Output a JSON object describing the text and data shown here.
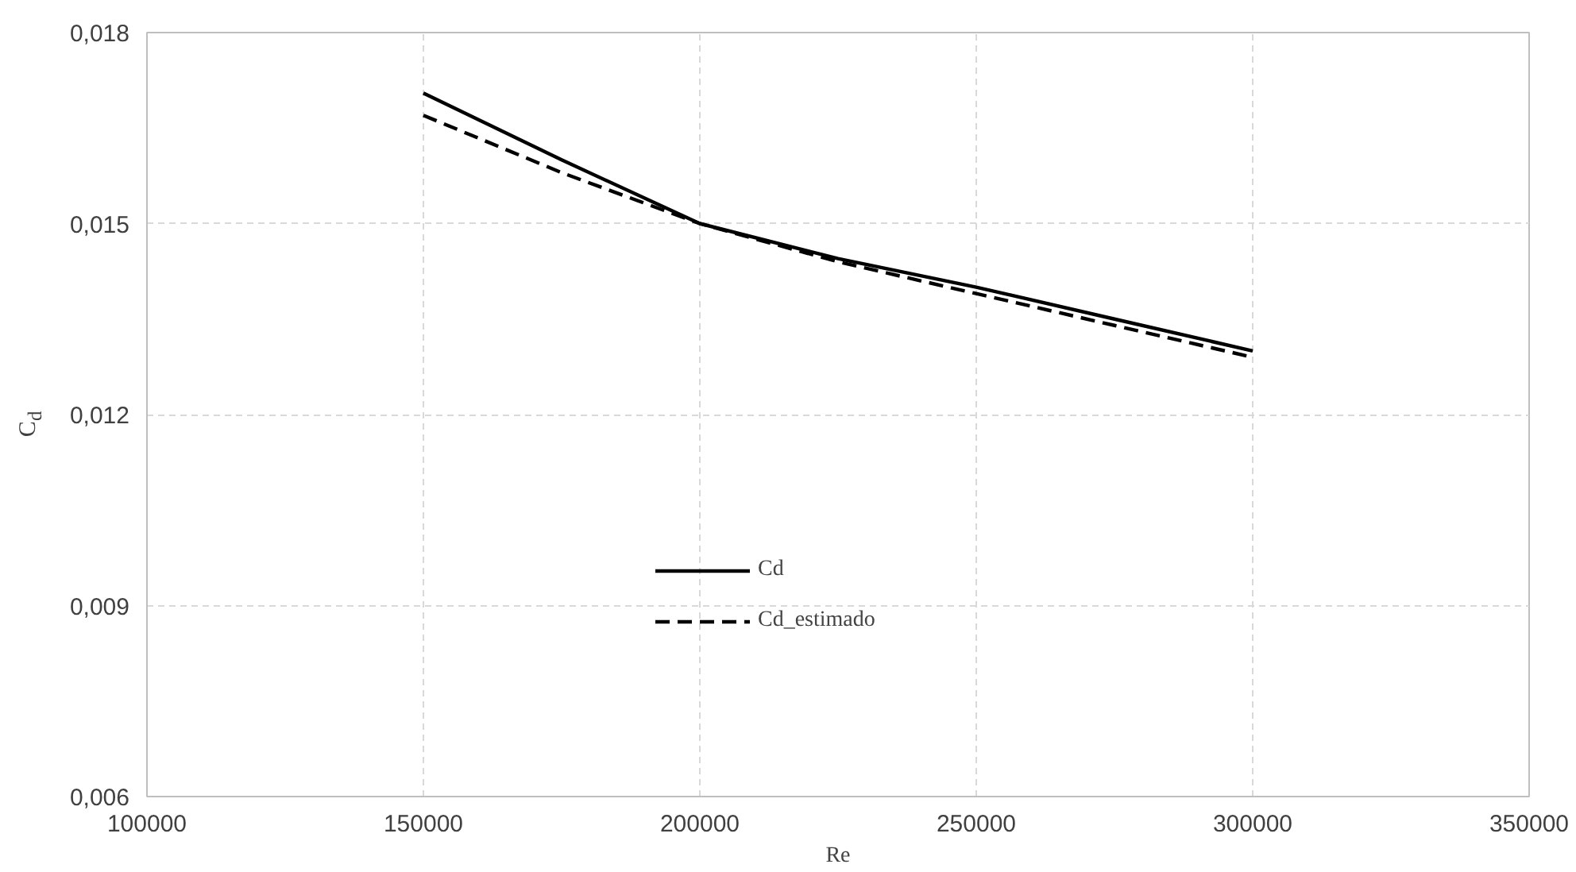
{
  "chart_data": {
    "type": "line",
    "xlabel": "Re",
    "ylabel": "C$_{d}$",
    "x": [
      150000,
      175000,
      200000,
      225000,
      250000,
      275000,
      300000
    ],
    "series": [
      {
        "name": "Cd",
        "color": "#000000",
        "line_style": "solid",
        "values": [
          0.01705,
          0.016,
          0.015,
          0.01445,
          0.014,
          0.0135,
          0.013
        ]
      },
      {
        "name": "Cd_estimado",
        "color": "#000000",
        "line_style": "dashed",
        "values": [
          0.0167,
          0.0158,
          0.015,
          0.0144,
          0.0139,
          0.0134,
          0.0129
        ]
      }
    ],
    "xlim": [
      100000,
      350000
    ],
    "xticks": [
      100000,
      150000,
      200000,
      250000,
      300000,
      350000
    ],
    "ylim": [
      0.006,
      0.018
    ],
    "yticks": [
      {
        "value": 0.006,
        "label": "0,006"
      },
      {
        "value": 0.009,
        "label": "0,009"
      },
      {
        "value": 0.012,
        "label": "0,012"
      },
      {
        "value": 0.015,
        "label": "0,015"
      },
      {
        "value": 0.018,
        "label": "0,018"
      }
    ],
    "grid": true,
    "legend": "bottom",
    "marker": "none"
  }
}
